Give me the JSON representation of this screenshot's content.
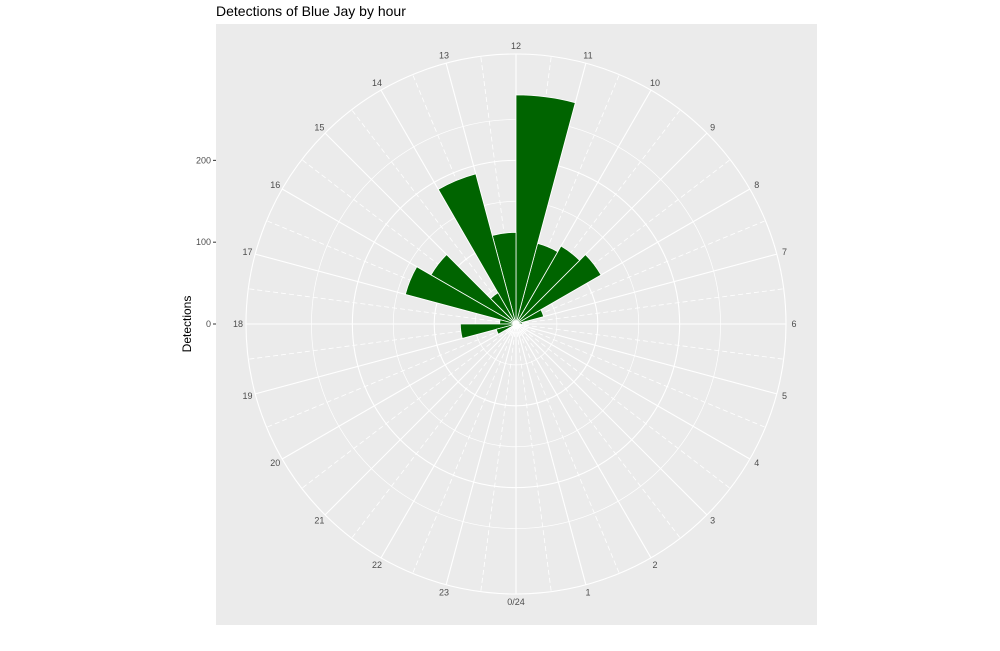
{
  "chart_data": {
    "type": "bar",
    "coord": "polar",
    "title": "Detections of Blue Jay by hour",
    "xlabel": "",
    "ylabel": "Detections",
    "categories": [
      "0/24",
      "1",
      "2",
      "3",
      "4",
      "5",
      "6",
      "7",
      "8",
      "9",
      "10",
      "11",
      "12",
      "13",
      "14",
      "15",
      "16",
      "17",
      "18",
      "19",
      "20",
      "21",
      "22",
      "23"
    ],
    "values": [
      0,
      0,
      0,
      0,
      0,
      0,
      8,
      35,
      120,
      110,
      102,
      280,
      112,
      190,
      44,
      120,
      140,
      20,
      68,
      25,
      0,
      0,
      0,
      0
    ],
    "r_ticks": [
      0,
      100,
      200
    ],
    "r_tick_labels": [
      "0",
      "100",
      "200"
    ],
    "rlim": [
      0,
      330
    ],
    "r_offset": 0,
    "bar_color": "#006400",
    "panel_color": "#ebebeb",
    "grid_color": "#ffffff",
    "grid": true,
    "legend": "none"
  }
}
